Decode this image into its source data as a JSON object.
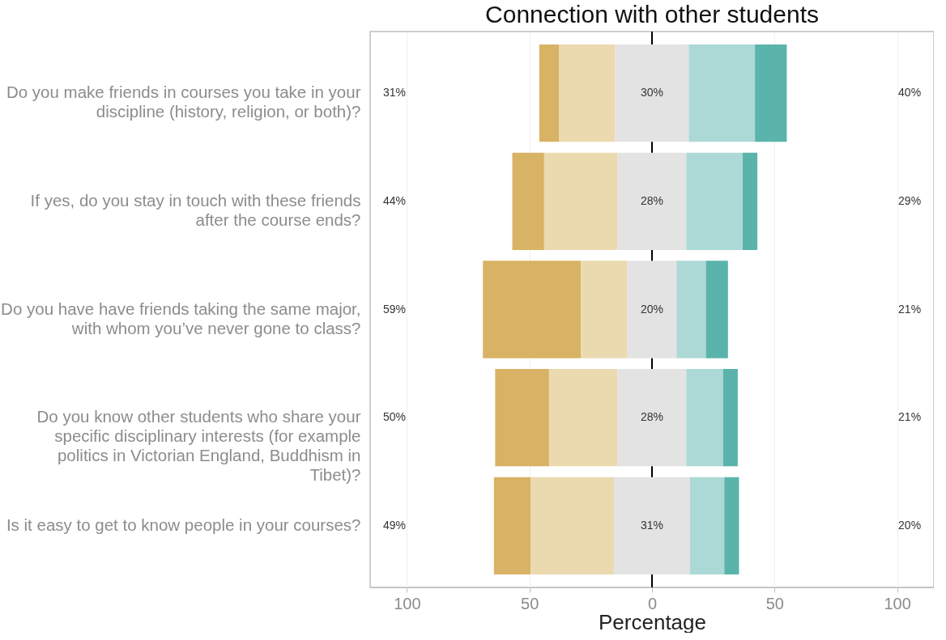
{
  "chart_data": {
    "type": "bar",
    "orientation": "horizontal",
    "title": "Connection with other students",
    "xlabel": "Percentage",
    "categories": [
      "Do you make friends in courses you take in your discipline (history, religion, or both)?",
      "If yes, do you stay in touch with these friends after the course ends?",
      "Do you have have friends taking the same major, with whom you’ve never gone to class?",
      "Do you know other students who share your specific disciplinary interests (for example politics in Victorian England, Buddhism in Tibet)?",
      "Is it easy to get to know people in your courses?"
    ],
    "series": [
      {
        "color": "#d8b365",
        "base": [
          -46,
          -57,
          -69,
          -64,
          -64.5
        ],
        "values": [
          8,
          13,
          40,
          22,
          15
        ]
      },
      {
        "color": "#ebd9b0",
        "base": [
          -38,
          -44,
          -29,
          -42,
          -49.5
        ],
        "values": [
          23,
          30,
          19,
          28,
          34
        ]
      },
      {
        "color": "#e3e3e3",
        "base": [
          -15,
          -14,
          -10,
          -14,
          -15.5
        ],
        "values": [
          30,
          28,
          20,
          28,
          31
        ],
        "value_labels": [
          "30%",
          "28%",
          "20%",
          "28%",
          "31%"
        ]
      },
      {
        "color": "#acd9d5",
        "base": [
          15,
          14,
          10,
          14,
          15.5
        ],
        "values": [
          27,
          23,
          12,
          15,
          14
        ]
      },
      {
        "color": "#5ab4ac",
        "base": [
          42,
          37,
          22,
          29,
          29.5
        ],
        "values": [
          13,
          6,
          9,
          6,
          6
        ]
      }
    ],
    "xlim": [
      -115,
      115
    ],
    "xticks": [
      {
        "value": -100,
        "label": "100"
      },
      {
        "value": -50,
        "label": "50"
      },
      0,
      50,
      100
    ],
    "grid": "x",
    "ref_lines": [
      {
        "axis": "x",
        "value": 0,
        "color": "#000000"
      }
    ],
    "annotations": [
      "31%",
      "40%",
      "44%",
      "29%",
      "59%",
      "21%",
      "50%",
      "21%",
      "49%",
      "20%"
    ]
  }
}
